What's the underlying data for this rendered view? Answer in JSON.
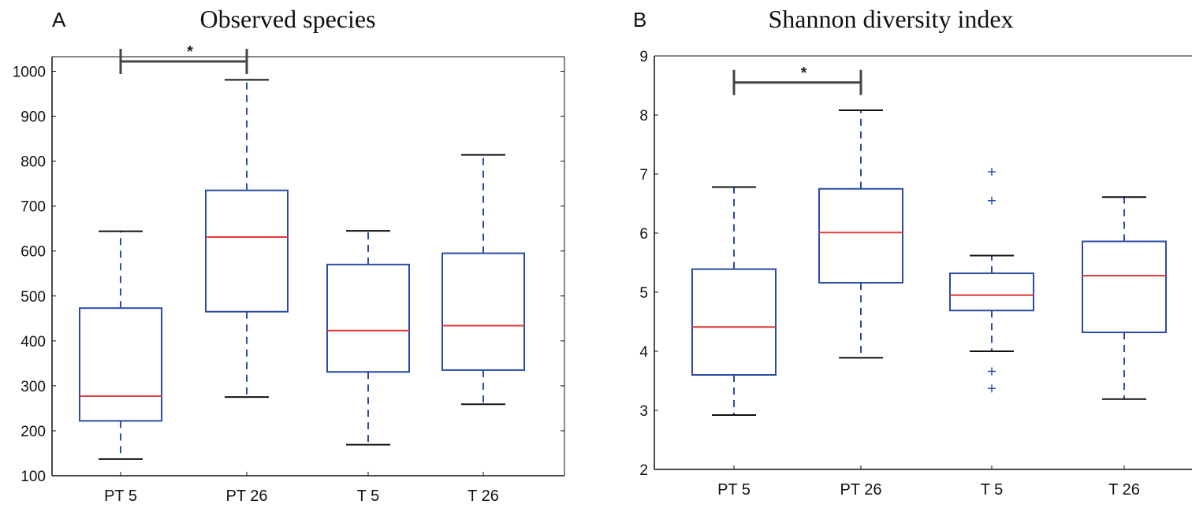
{
  "colors": {
    "box": "#2b4ba8",
    "median": "#e03a3a",
    "cap": "#111111",
    "bracket": "#444444",
    "axis": "#111111"
  },
  "chart_data": [
    {
      "type": "box",
      "panel_label": "A",
      "title": "Observed species",
      "categories": [
        "PT 5",
        "PT 26",
        "T 5",
        "T 26"
      ],
      "ylim": [
        100,
        1050
      ],
      "yticks": [
        100,
        200,
        300,
        400,
        500,
        600,
        700,
        800,
        900,
        1000
      ],
      "boxes": [
        {
          "category": "PT 5",
          "whisker_low": 137,
          "q1": 222,
          "median": 277,
          "q3": 473,
          "whisker_high": 644,
          "outliers": []
        },
        {
          "category": "PT 26",
          "whisker_low": 275,
          "q1": 465,
          "median": 631,
          "q3": 735,
          "whisker_high": 981,
          "outliers": []
        },
        {
          "category": "T 5",
          "whisker_low": 169,
          "q1": 331,
          "median": 423,
          "q3": 570,
          "whisker_high": 645,
          "outliers": []
        },
        {
          "category": "T 26",
          "whisker_low": 259,
          "q1": 335,
          "median": 434,
          "q3": 595,
          "whisker_high": 814,
          "outliers": []
        }
      ],
      "significance": [
        {
          "from": "PT 5",
          "to": "PT 26",
          "y": 1022,
          "label": "*"
        }
      ]
    },
    {
      "type": "box",
      "panel_label": "B",
      "title": "Shannon diversity index",
      "categories": [
        "PT 5",
        "PT 26",
        "T 5",
        "T 26"
      ],
      "ylim": [
        2,
        9
      ],
      "yticks": [
        2,
        3,
        4,
        5,
        6,
        7,
        8,
        9
      ],
      "boxes": [
        {
          "category": "PT 5",
          "whisker_low": 2.92,
          "q1": 3.6,
          "median": 4.41,
          "q3": 5.39,
          "whisker_high": 6.78,
          "outliers": []
        },
        {
          "category": "PT 26",
          "whisker_low": 3.89,
          "q1": 5.16,
          "median": 6.01,
          "q3": 6.75,
          "whisker_high": 8.08,
          "outliers": []
        },
        {
          "category": "T 5",
          "whisker_low": 4.0,
          "q1": 4.69,
          "median": 4.95,
          "q3": 5.32,
          "whisker_high": 5.62,
          "outliers": [
            7.04,
            6.55,
            3.66,
            3.37
          ]
        },
        {
          "category": "T 26",
          "whisker_low": 3.19,
          "q1": 4.32,
          "median": 5.28,
          "q3": 5.86,
          "whisker_high": 6.61,
          "outliers": []
        }
      ],
      "significance": [
        {
          "from": "PT 5",
          "to": "PT 26",
          "y": 8.55,
          "label": "*"
        }
      ]
    }
  ]
}
